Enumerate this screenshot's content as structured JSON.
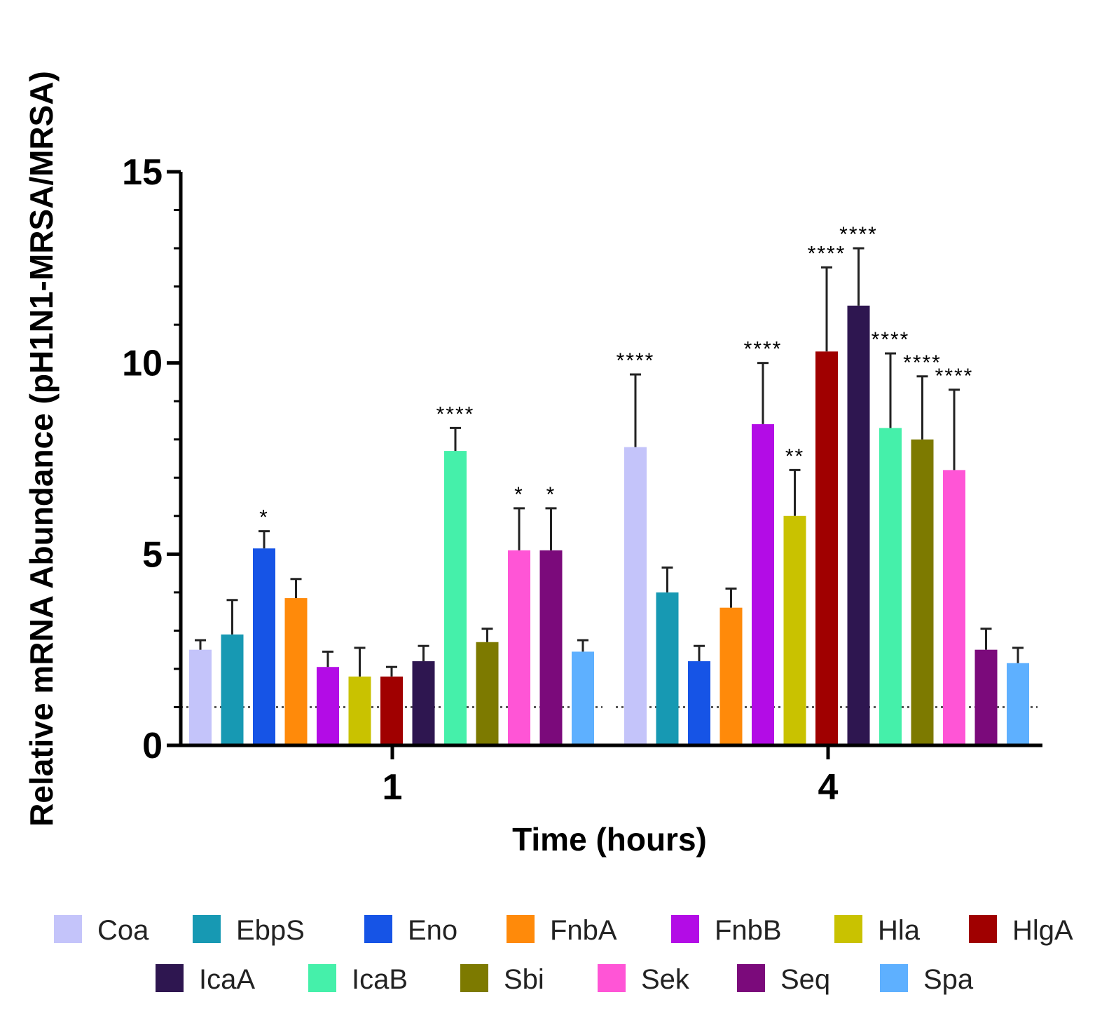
{
  "chart_data": {
    "type": "bar",
    "title": "",
    "xlabel": "Time (hours)",
    "ylabel": "Relative mRNA Abundance (pH1N1-MRSA/MRSA)",
    "ylim": [
      0,
      15
    ],
    "yticks": [
      0,
      5,
      10,
      15
    ],
    "categories": [
      "1",
      "4"
    ],
    "reference_line": 1,
    "legend_position": "bottom",
    "series": [
      {
        "name": "Coa",
        "color": "#c4c4fa",
        "values": [
          2.5,
          7.8
        ],
        "errors": [
          0.25,
          1.9
        ],
        "sig": [
          "",
          "****"
        ]
      },
      {
        "name": "EbpS",
        "color": "#1799b3",
        "values": [
          2.9,
          4.0
        ],
        "errors": [
          0.9,
          0.65
        ],
        "sig": [
          "",
          ""
        ]
      },
      {
        "name": "Eno",
        "color": "#1654e6",
        "values": [
          5.15,
          2.2
        ],
        "errors": [
          0.45,
          0.4
        ],
        "sig": [
          "*",
          ""
        ]
      },
      {
        "name": "FnbA",
        "color": "#ff8a0a",
        "values": [
          3.85,
          3.6
        ],
        "errors": [
          0.5,
          0.5
        ],
        "sig": [
          "",
          ""
        ]
      },
      {
        "name": "FnbB",
        "color": "#b30ce6",
        "values": [
          2.05,
          8.4
        ],
        "errors": [
          0.4,
          1.6
        ],
        "sig": [
          "",
          "****"
        ]
      },
      {
        "name": "Hla",
        "color": "#c9c200",
        "values": [
          1.8,
          6.0
        ],
        "errors": [
          0.75,
          1.2
        ],
        "sig": [
          "",
          "**"
        ]
      },
      {
        "name": "HlgA",
        "color": "#a00000",
        "values": [
          1.8,
          10.3
        ],
        "errors": [
          0.25,
          2.2
        ],
        "sig": [
          "",
          "****"
        ]
      },
      {
        "name": "IcaA",
        "color": "#2e1650",
        "values": [
          2.2,
          11.5
        ],
        "errors": [
          0.4,
          1.5
        ],
        "sig": [
          "",
          "****"
        ]
      },
      {
        "name": "IcaB",
        "color": "#45f0aa",
        "values": [
          7.7,
          8.3
        ],
        "errors": [
          0.6,
          1.95
        ],
        "sig": [
          "****",
          "****"
        ]
      },
      {
        "name": "Sbi",
        "color": "#7d7a00",
        "values": [
          2.7,
          8.0
        ],
        "errors": [
          0.35,
          1.65
        ],
        "sig": [
          "",
          "****"
        ]
      },
      {
        "name": "Sek",
        "color": "#ff55d6",
        "values": [
          5.1,
          7.2
        ],
        "errors": [
          1.1,
          2.1
        ],
        "sig": [
          "*",
          "****"
        ]
      },
      {
        "name": "Seq",
        "color": "#7b0a7b",
        "values": [
          5.1,
          2.5
        ],
        "errors": [
          1.1,
          0.55
        ],
        "sig": [
          "*",
          ""
        ]
      },
      {
        "name": "Spa",
        "color": "#5eb0ff",
        "values": [
          2.45,
          2.15
        ],
        "errors": [
          0.3,
          0.4
        ],
        "sig": [
          "",
          ""
        ]
      }
    ]
  }
}
